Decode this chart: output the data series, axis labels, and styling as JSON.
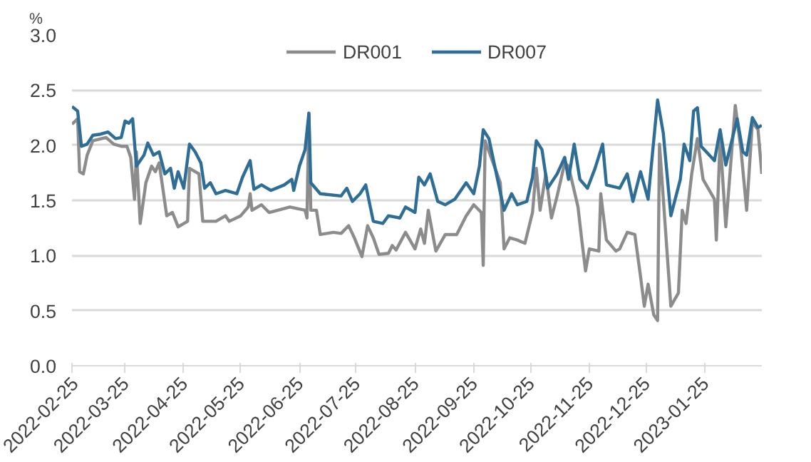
{
  "chart_data": {
    "type": "line",
    "ylabel": "%",
    "legend": "top",
    "grid": "y",
    "xlim": [
      "2022-02-25",
      "2023-02-24"
    ],
    "ylim": [
      0,
      3
    ],
    "yticks": [
      {
        "value": 0,
        "label": "0.0"
      },
      {
        "value": 0.5,
        "label": "0.5"
      },
      {
        "value": 1,
        "label": "1.0"
      },
      {
        "value": 1.5,
        "label": "1.5"
      },
      {
        "value": 2,
        "label": "2.0"
      },
      {
        "value": 2.5,
        "label": "2.5"
      },
      {
        "value": 3,
        "label": "3.0"
      }
    ],
    "xticks": [
      {
        "value": "2022-02-25",
        "label": "2022-02-25"
      },
      {
        "value": "2022-03-25",
        "label": "2022-03-25"
      },
      {
        "value": "2022-04-25",
        "label": "2022-04-25"
      },
      {
        "value": "2022-05-25",
        "label": "2022-05-25"
      },
      {
        "value": "2022-06-25",
        "label": "2022-06-25"
      },
      {
        "value": "2022-07-25",
        "label": "2022-07-25"
      },
      {
        "value": "2022-08-25",
        "label": "2022-08-25"
      },
      {
        "value": "2022-09-25",
        "label": "2022-09-25"
      },
      {
        "value": "2022-10-25",
        "label": "2022-10-25"
      },
      {
        "value": "2022-11-25",
        "label": "2022-11-25"
      },
      {
        "value": "2022-12-25",
        "label": "2022-12-25"
      },
      {
        "value": "2023-01-25",
        "label": "2023-01-25"
      }
    ],
    "series": [
      {
        "name": "DR001",
        "color": "#8c8c8c",
        "x": [
          "2022-02-25",
          "2022-02-28",
          "2022-03-01",
          "2022-03-03",
          "2022-03-05",
          "2022-03-08",
          "2022-03-15",
          "2022-03-19",
          "2022-03-23",
          "2022-03-26",
          "2022-03-28",
          "2022-03-30",
          "2022-03-31",
          "2022-04-02",
          "2022-04-05",
          "2022-04-08",
          "2022-04-10",
          "2022-04-12",
          "2022-04-16",
          "2022-04-19",
          "2022-04-22",
          "2022-04-27",
          "2022-04-28",
          "2022-05-03",
          "2022-05-05",
          "2022-05-12",
          "2022-05-17",
          "2022-05-19",
          "2022-05-25",
          "2022-05-29",
          "2022-05-30",
          "2022-05-31",
          "2022-06-05",
          "2022-06-09",
          "2022-06-20",
          "2022-06-28",
          "2022-06-29",
          "2022-06-30",
          "2022-07-01",
          "2022-07-04",
          "2022-07-06",
          "2022-07-13",
          "2022-07-17",
          "2022-07-21",
          "2022-07-24",
          "2022-07-28",
          "2022-07-31",
          "2022-08-03",
          "2022-08-06",
          "2022-08-11",
          "2022-08-13",
          "2022-08-15",
          "2022-08-20",
          "2022-08-25",
          "2022-08-28",
          "2022-08-30",
          "2022-09-01",
          "2022-09-05",
          "2022-09-10",
          "2022-09-16",
          "2022-09-21",
          "2022-09-25",
          "2022-09-29",
          "2022-09-30",
          "2022-10-01",
          "2022-10-09",
          "2022-10-11",
          "2022-10-14",
          "2022-10-18",
          "2022-10-22",
          "2022-10-26",
          "2022-10-28",
          "2022-10-30",
          "2022-11-02",
          "2022-11-05",
          "2022-11-08",
          "2022-11-12",
          "2022-11-14",
          "2022-11-19",
          "2022-11-21",
          "2022-11-23",
          "2022-11-25",
          "2022-11-30",
          "2022-12-01",
          "2022-12-04",
          "2022-12-09",
          "2022-12-11",
          "2022-12-15",
          "2022-12-19",
          "2022-12-22",
          "2022-12-24",
          "2022-12-26",
          "2022-12-29",
          "2022-12-31",
          "2023-01-01",
          "2023-01-07",
          "2023-01-11",
          "2023-01-13",
          "2023-01-15",
          "2023-01-18",
          "2023-01-21",
          "2023-01-24",
          "2023-01-30",
          "2023-01-31",
          "2023-02-02",
          "2023-02-05",
          "2023-02-10",
          "2023-02-13",
          "2023-02-16",
          "2023-02-19",
          "2023-02-22",
          "2023-02-24"
        ],
        "values": [
          2.19,
          2.24,
          1.76,
          1.74,
          1.91,
          2.04,
          2.07,
          2.01,
          1.99,
          1.99,
          1.89,
          1.51,
          1.94,
          1.29,
          1.66,
          1.81,
          1.76,
          1.84,
          1.36,
          1.39,
          1.26,
          1.31,
          1.79,
          1.74,
          1.31,
          1.31,
          1.36,
          1.31,
          1.36,
          1.44,
          1.56,
          1.41,
          1.46,
          1.39,
          1.44,
          1.41,
          1.34,
          2.29,
          1.41,
          1.41,
          1.19,
          1.21,
          1.2,
          1.27,
          1.16,
          0.99,
          1.27,
          1.16,
          1.01,
          1.02,
          1.09,
          1.05,
          1.21,
          1.06,
          1.24,
          1.11,
          1.41,
          1.04,
          1.19,
          1.19,
          1.36,
          1.46,
          1.39,
          0.91,
          2.04,
          1.66,
          1.06,
          1.16,
          1.14,
          1.11,
          1.39,
          1.79,
          1.41,
          1.74,
          1.34,
          1.54,
          1.84,
          1.81,
          1.44,
          1.14,
          0.86,
          1.06,
          1.04,
          1.56,
          1.14,
          1.04,
          1.06,
          1.21,
          1.19,
          0.81,
          0.54,
          0.74,
          0.46,
          0.41,
          2.01,
          0.54,
          0.66,
          1.41,
          1.29,
          1.74,
          2.06,
          1.69,
          1.51,
          1.14,
          2.06,
          1.26,
          2.36,
          1.96,
          1.41,
          2.21,
          2.14,
          1.74
        ]
      },
      {
        "name": "DR007",
        "color": "#2e6e96",
        "x": [
          "2022-02-25",
          "2022-02-28",
          "2022-03-02",
          "2022-03-05",
          "2022-03-08",
          "2022-03-12",
          "2022-03-16",
          "2022-03-20",
          "2022-03-23",
          "2022-03-25",
          "2022-03-27",
          "2022-03-29",
          "2022-03-31",
          "2022-04-04",
          "2022-04-06",
          "2022-04-09",
          "2022-04-12",
          "2022-04-15",
          "2022-04-18",
          "2022-04-20",
          "2022-04-22",
          "2022-04-25",
          "2022-04-28",
          "2022-05-01",
          "2022-05-04",
          "2022-05-06",
          "2022-05-09",
          "2022-05-12",
          "2022-05-17",
          "2022-05-23",
          "2022-05-26",
          "2022-05-30",
          "2022-06-01",
          "2022-06-05",
          "2022-06-10",
          "2022-06-17",
          "2022-06-21",
          "2022-06-22",
          "2022-06-25",
          "2022-06-28",
          "2022-06-30",
          "2022-07-01",
          "2022-07-06",
          "2022-07-17",
          "2022-07-20",
          "2022-07-23",
          "2022-07-27",
          "2022-07-30",
          "2022-08-03",
          "2022-08-08",
          "2022-08-11",
          "2022-08-17",
          "2022-08-20",
          "2022-08-25",
          "2022-08-27",
          "2022-08-30",
          "2022-09-02",
          "2022-09-06",
          "2022-09-10",
          "2022-09-15",
          "2022-09-21",
          "2022-09-25",
          "2022-09-28",
          "2022-09-30",
          "2022-10-03",
          "2022-10-11",
          "2022-10-15",
          "2022-10-18",
          "2022-10-23",
          "2022-10-26",
          "2022-10-28",
          "2022-10-31",
          "2022-11-03",
          "2022-11-08",
          "2022-11-12",
          "2022-11-14",
          "2022-11-17",
          "2022-11-20",
          "2022-11-24",
          "2022-11-28",
          "2022-12-02",
          "2022-12-04",
          "2022-12-11",
          "2022-12-15",
          "2022-12-18",
          "2022-12-22",
          "2022-12-26",
          "2022-12-31",
          "2023-01-03",
          "2023-01-07",
          "2023-01-12",
          "2023-01-14",
          "2023-01-17",
          "2023-01-19",
          "2023-01-21",
          "2023-01-23",
          "2023-01-30",
          "2023-02-02",
          "2023-02-05",
          "2023-02-11",
          "2023-02-14",
          "2023-02-16",
          "2023-02-19",
          "2023-02-22",
          "2023-02-24"
        ],
        "values": [
          2.35,
          2.31,
          1.99,
          2.01,
          2.09,
          2.1,
          2.12,
          2.06,
          2.07,
          2.22,
          2.2,
          2.24,
          1.81,
          1.91,
          2.02,
          1.91,
          1.94,
          1.74,
          1.79,
          1.61,
          1.76,
          1.61,
          2.01,
          1.94,
          1.84,
          1.61,
          1.66,
          1.56,
          1.59,
          1.56,
          1.71,
          1.86,
          1.6,
          1.64,
          1.59,
          1.64,
          1.69,
          1.59,
          1.81,
          1.96,
          2.29,
          1.66,
          1.56,
          1.54,
          1.61,
          1.49,
          1.56,
          1.64,
          1.31,
          1.29,
          1.36,
          1.34,
          1.44,
          1.39,
          1.71,
          1.64,
          1.74,
          1.49,
          1.46,
          1.51,
          1.66,
          1.56,
          1.81,
          2.14,
          2.06,
          1.41,
          1.56,
          1.46,
          1.49,
          1.71,
          2.04,
          1.96,
          1.61,
          1.74,
          1.89,
          1.69,
          2.01,
          1.69,
          1.61,
          1.79,
          2.01,
          1.64,
          1.61,
          1.74,
          1.49,
          1.76,
          1.51,
          2.41,
          2.11,
          1.36,
          1.69,
          2.01,
          1.86,
          2.31,
          2.34,
          1.99,
          1.86,
          2.14,
          1.82,
          2.24,
          1.94,
          1.91,
          2.25,
          2.16,
          2.18
        ]
      }
    ]
  }
}
